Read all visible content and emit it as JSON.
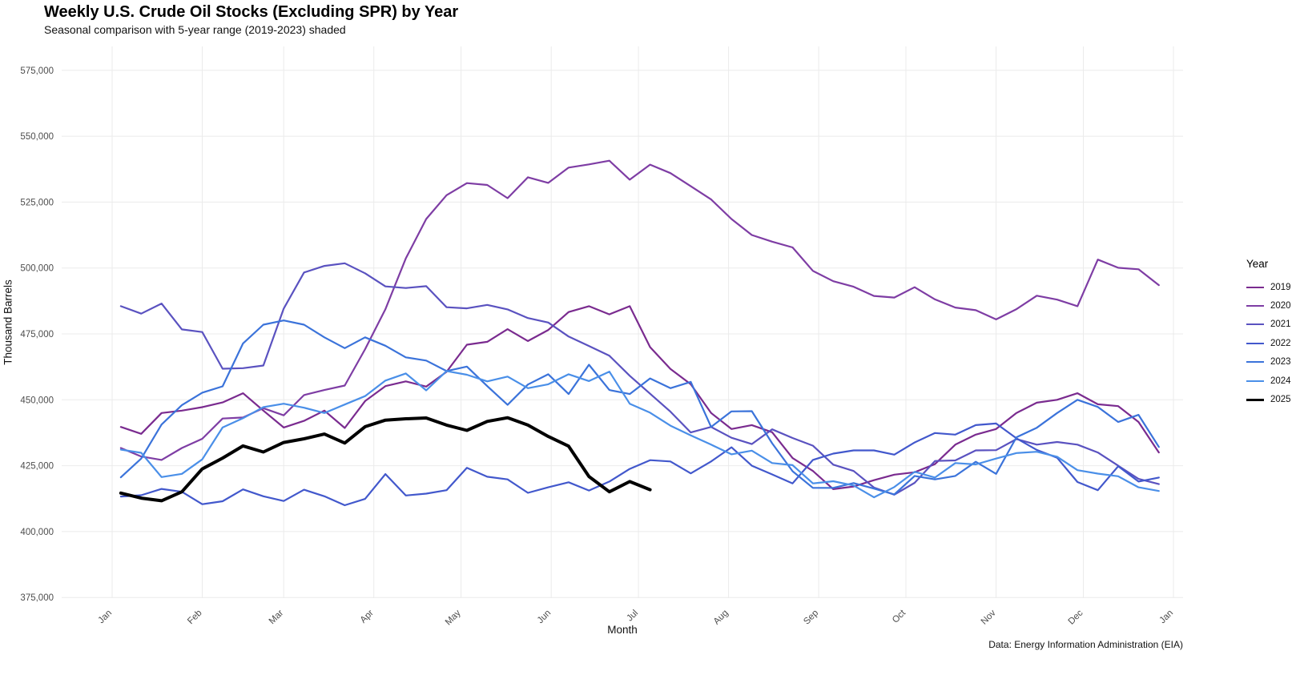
{
  "header": {
    "title": "Weekly U.S. Crude Oil Stocks (Excluding SPR) by Year",
    "subtitle": "Seasonal comparison with 5-year range (2019-2023) shaded"
  },
  "caption": "Data: Energy Information Administration (EIA)",
  "axes": {
    "x_label": "Month",
    "y_label": "Thousand Barrels",
    "y_tick_labels": [
      "575,000",
      "550,000",
      "525,000",
      "500,000",
      "475,000",
      "450,000",
      "425,000",
      "400,000",
      "375,000"
    ],
    "y_tick_values": [
      575000,
      550000,
      525000,
      500000,
      475000,
      450000,
      425000,
      400000,
      375000
    ],
    "x_tick_labels": [
      "Jan",
      "Feb",
      "Mar",
      "Apr",
      "May",
      "Jun",
      "Jul",
      "Aug",
      "Sep",
      "Oct",
      "Nov",
      "Dec",
      "Jan"
    ],
    "x_tick_days": [
      0,
      31,
      59,
      90,
      120,
      151,
      181,
      212,
      243,
      273,
      304,
      334,
      365
    ]
  },
  "legend": {
    "title": "Year",
    "position": "right"
  },
  "chart_data": {
    "type": "line",
    "title": "Weekly U.S. Crude Oil Stocks (Excluding SPR) by Year",
    "subtitle": "Seasonal comparison with 5-year range (2019-2023) shaded",
    "xlabel": "Month",
    "ylabel": "Thousand Barrels",
    "x_unit": "weekly observations, week-ending day-of-year = 3 + 7*i",
    "ylim": [
      375000,
      575000
    ],
    "grid": true,
    "legend_position": "right",
    "grid_color": "#ebebeb",
    "series": [
      {
        "name": "2019",
        "color": "#7a2b8f",
        "width": 2.2,
        "values": [
          439700,
          437100,
          445000,
          445900,
          447200,
          449000,
          452500,
          445900,
          439500,
          442000,
          445900,
          439300,
          449500,
          455200,
          457000,
          455000,
          460600,
          470900,
          472000,
          476800,
          472300,
          476500,
          483300,
          485500,
          482400,
          485500,
          470000,
          461700,
          455900,
          445000,
          438900,
          440400,
          437700,
          427900,
          423000,
          416100,
          417100,
          419500,
          421600,
          422500,
          425600,
          433000,
          436800,
          438900,
          445000,
          448900,
          450000,
          452500,
          448300,
          447600,
          441600,
          430000
        ]
      },
      {
        "name": "2020",
        "color": "#7e3da4",
        "width": 2.2,
        "values": [
          431700,
          428500,
          427200,
          431700,
          435200,
          442900,
          443300,
          446800,
          444100,
          451800,
          453700,
          455400,
          469200,
          484400,
          503600,
          518600,
          527600,
          532200,
          531500,
          526500,
          534400,
          532300,
          538100,
          539300,
          540700,
          533500,
          539200,
          536000,
          531000,
          526000,
          518600,
          512500,
          510000,
          507800,
          498900,
          495000,
          492900,
          489400,
          488800,
          492700,
          488100,
          485000,
          484000,
          480500,
          484400,
          489500,
          488000,
          485500,
          503200,
          500100,
          499500,
          493500
        ]
      },
      {
        "name": "2021",
        "color": "#5a52c0",
        "width": 2.2,
        "values": [
          485500,
          482700,
          486500,
          476700,
          475700,
          461800,
          462000,
          463000,
          484600,
          498300,
          500800,
          501800,
          498000,
          493000,
          492400,
          493100,
          485100,
          484700,
          486000,
          484300,
          481000,
          479300,
          474000,
          470400,
          466700,
          459100,
          452300,
          445500,
          437600,
          439700,
          435600,
          433200,
          438800,
          435500,
          432600,
          425400,
          423000,
          416700,
          414000,
          418500,
          426800,
          427000,
          430800,
          430900,
          435100,
          433000,
          434000,
          433000,
          430000,
          425000,
          420000,
          418000
        ]
      },
      {
        "name": "2022",
        "color": "#4258cc",
        "width": 2.2,
        "values": [
          413300,
          413800,
          416200,
          415100,
          410400,
          411500,
          416000,
          413400,
          411600,
          415900,
          413400,
          410000,
          412400,
          421800,
          413700,
          414400,
          415700,
          424200,
          420800,
          419800,
          414700,
          416800,
          418700,
          415600,
          419000,
          423800,
          427100,
          426600,
          422100,
          426600,
          432000,
          425000,
          421700,
          418300,
          427200,
          429600,
          430800,
          430800,
          429200,
          433800,
          437400,
          436800,
          440400,
          441000,
          435400,
          431000,
          428000,
          418800,
          415700,
          424800,
          419000,
          420500
        ]
      },
      {
        "name": "2023",
        "color": "#3b73da",
        "width": 2.2,
        "values": [
          420600,
          427700,
          440600,
          448000,
          452700,
          455100,
          471400,
          478500,
          480100,
          478500,
          473700,
          469600,
          473700,
          470500,
          466100,
          464900,
          460900,
          462600,
          455200,
          448100,
          455800,
          459700,
          452200,
          463300,
          453700,
          452200,
          458100,
          454400,
          456800,
          439700,
          445600,
          445700,
          433500,
          422900,
          416600,
          416600,
          418400,
          416300,
          414100,
          421100,
          419800,
          421100,
          426500,
          421900,
          435800,
          439400,
          445000,
          450000,
          447300,
          441600,
          444300,
          432100
        ]
      },
      {
        "name": "2024",
        "color": "#4a8fe8",
        "width": 2.2,
        "values": [
          431100,
          429900,
          420700,
          421900,
          427400,
          439500,
          443000,
          447200,
          448500,
          447000,
          445000,
          448200,
          451400,
          457300,
          460000,
          453600,
          460900,
          459500,
          457000,
          458800,
          454400,
          455900,
          459700,
          457100,
          460700,
          448500,
          445100,
          440200,
          436500,
          433000,
          429300,
          430700,
          426000,
          425200,
          418300,
          419100,
          417500,
          413000,
          416900,
          422700,
          420500,
          426000,
          425500,
          427700,
          429800,
          430300,
          428400,
          423300,
          422000,
          421000,
          416800,
          415400
        ]
      },
      {
        "name": "2025",
        "color": "#000000",
        "width": 4,
        "values": [
          414600,
          412700,
          411700,
          415100,
          423800,
          427900,
          432500,
          430200,
          433800,
          435200,
          437000,
          433600,
          439800,
          442300,
          442800,
          443100,
          440400,
          438400,
          441800,
          443200,
          440400,
          436100,
          432400,
          420900,
          415100,
          419000,
          415900
        ]
      }
    ]
  }
}
